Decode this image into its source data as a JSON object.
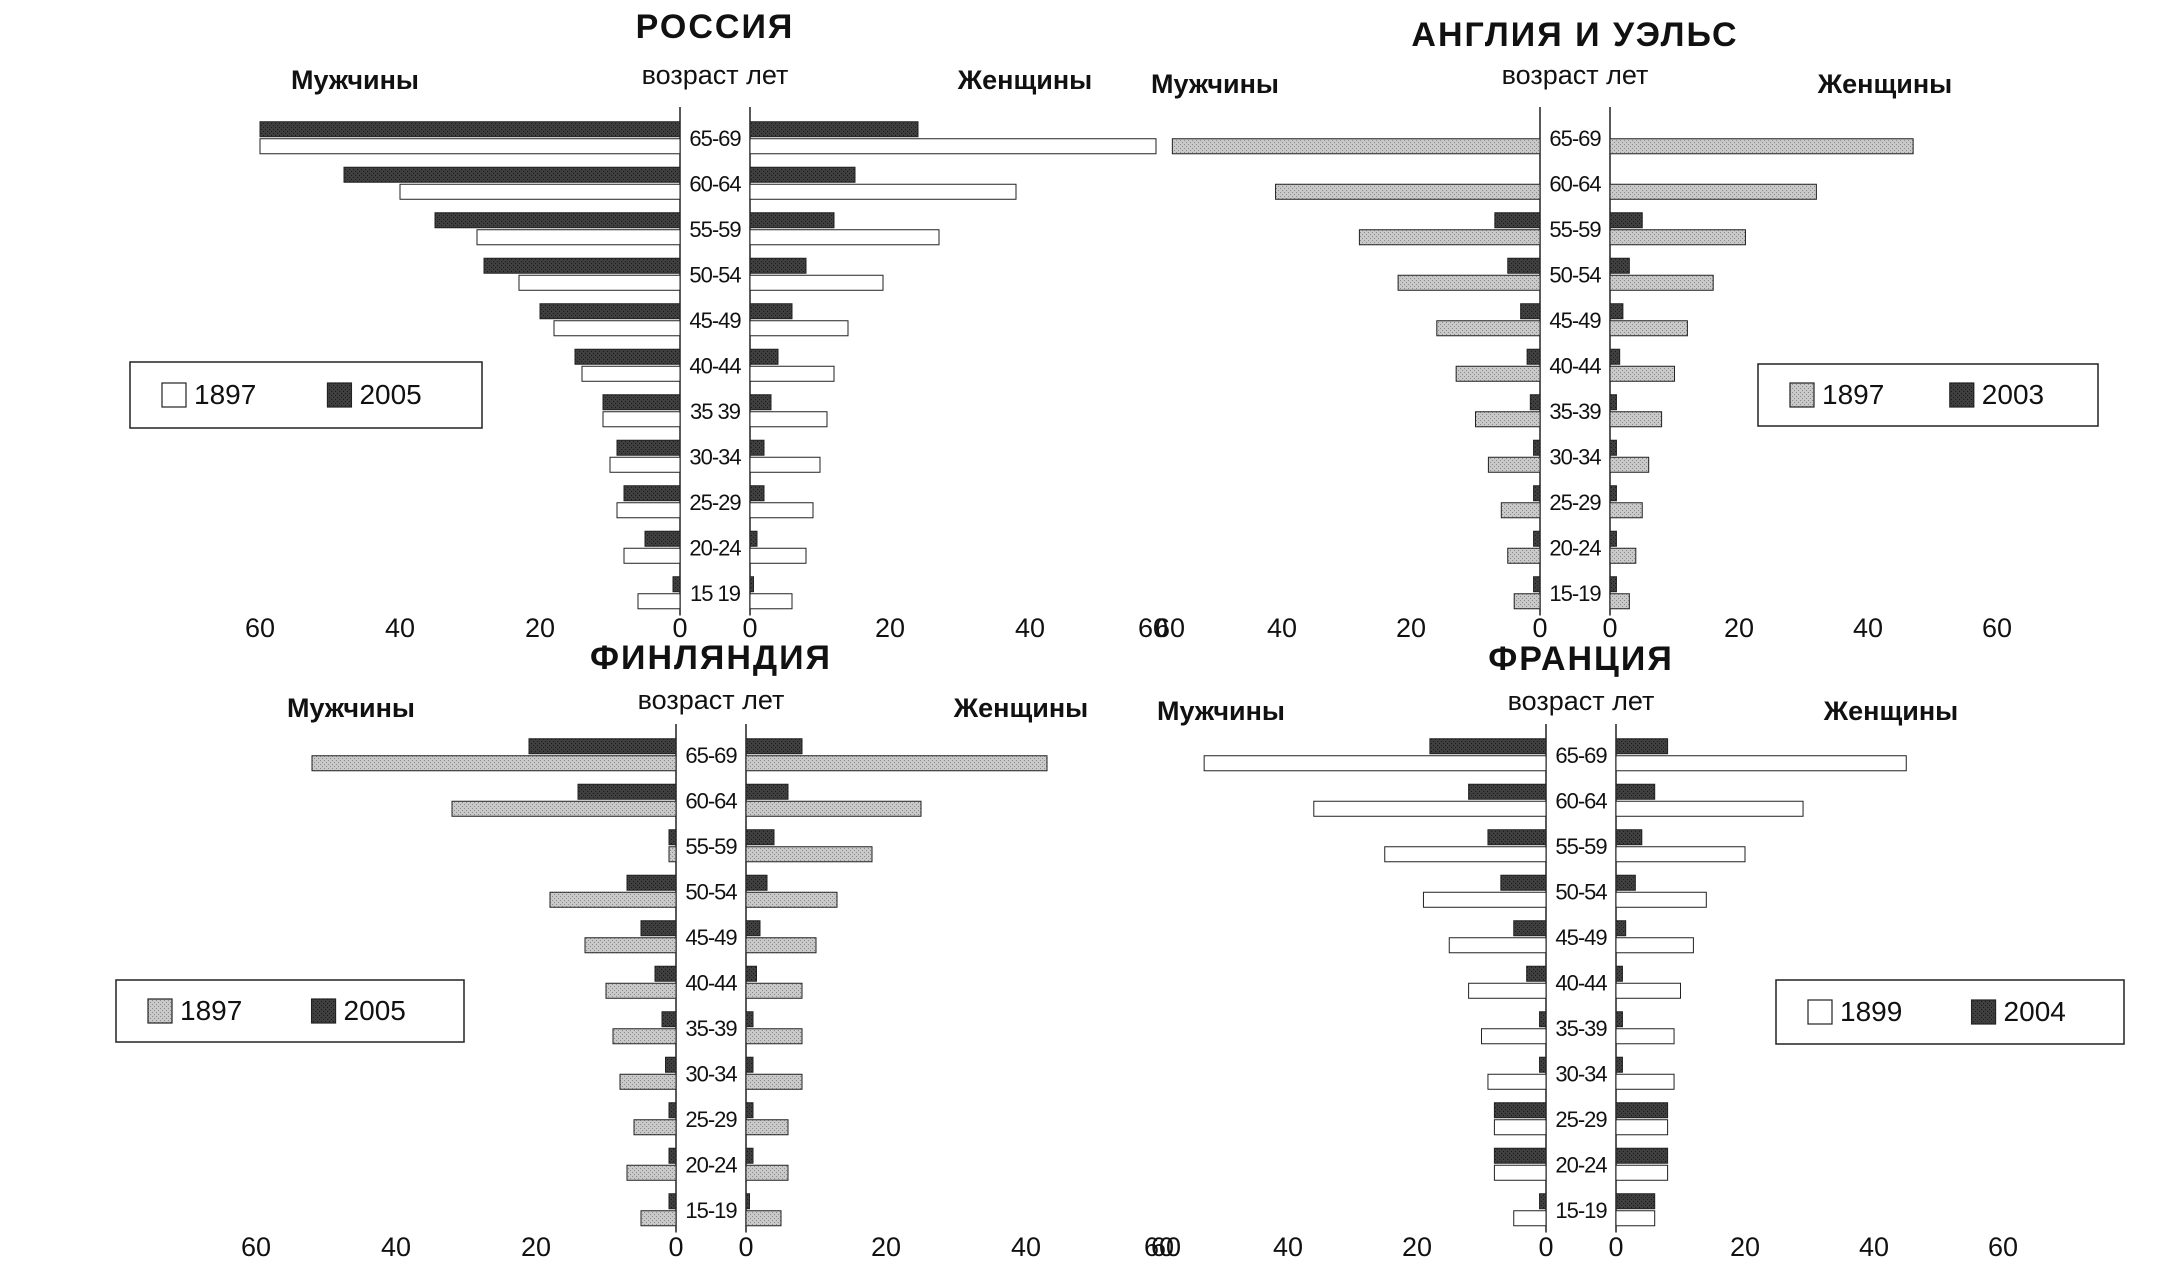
{
  "colors": {
    "old": "#c9c9c9",
    "new": "#3f3f3f",
    "blank": "#ffffff",
    "frame": "#222222"
  },
  "chart_data": [
    {
      "type": "bar",
      "title": "РОССИЯ",
      "men_label": "Мужчины",
      "women_label": "Женщины",
      "age_header": "возраст лет",
      "legend": [
        {
          "label": "1897",
          "swatch": "blank"
        },
        {
          "label": "2005",
          "swatch": "new"
        }
      ],
      "categories": [
        "65-69",
        "60-64",
        "55-59",
        "50-54",
        "45-49",
        "40-44",
        "35 39",
        "30-34",
        "25-29",
        "20-24",
        "15 19"
      ],
      "series": [
        {
          "name": "1897",
          "sex": "men",
          "values": [
            60,
            40,
            29,
            23,
            18,
            14,
            11,
            10,
            9,
            8,
            6
          ]
        },
        {
          "name": "2005",
          "sex": "men",
          "values": [
            60,
            48,
            35,
            28,
            20,
            15,
            11,
            9,
            8,
            5,
            1
          ]
        },
        {
          "name": "1897",
          "sex": "women",
          "values": [
            58,
            38,
            27,
            19,
            14,
            12,
            11,
            10,
            9,
            8,
            6
          ]
        },
        {
          "name": "2005",
          "sex": "women",
          "values": [
            24,
            15,
            12,
            8,
            6,
            4,
            3,
            2,
            2,
            1,
            0.5
          ]
        }
      ],
      "xticks_left": [
        "60",
        "40",
        "20",
        "0"
      ],
      "xticks_right": [
        "0",
        "20",
        "40",
        "60"
      ],
      "xlim": [
        0,
        60
      ]
    },
    {
      "type": "bar",
      "title": "АНГЛИЯ И УЭЛЬС",
      "men_label": "Мужчины",
      "women_label": "Женщины",
      "age_header": "возраст лет",
      "legend": [
        {
          "label": "1897",
          "swatch": "old"
        },
        {
          "label": "2003",
          "swatch": "new"
        }
      ],
      "categories": [
        "65-69",
        "60-64",
        "55-59",
        "50-54",
        "45-49",
        "40-44",
        "35-39",
        "30-34",
        "25-29",
        "20-24",
        "15-19"
      ],
      "series": [
        {
          "name": "1897",
          "sex": "men",
          "values": [
            57,
            41,
            28,
            22,
            16,
            13,
            10,
            8,
            6,
            5,
            4
          ]
        },
        {
          "name": "2003",
          "sex": "men",
          "values": [
            0,
            0,
            7,
            5,
            3,
            2,
            1.5,
            1,
            1,
            1,
            1
          ]
        },
        {
          "name": "1897",
          "sex": "women",
          "values": [
            47,
            32,
            21,
            16,
            12,
            10,
            8,
            6,
            5,
            4,
            3
          ]
        },
        {
          "name": "2003",
          "sex": "women",
          "values": [
            0,
            0,
            5,
            3,
            2,
            1.5,
            1,
            1,
            1,
            1,
            1
          ]
        }
      ],
      "xticks_left": [
        "60",
        "40",
        "20",
        "0"
      ],
      "xticks_right": [
        "0",
        "20",
        "40",
        "60"
      ],
      "xlim": [
        0,
        60
      ]
    },
    {
      "type": "bar",
      "title": "ФИНЛЯНДИЯ",
      "men_label": "Мужчины",
      "women_label": "Женщины",
      "age_header": "возраст лет",
      "legend": [
        {
          "label": "1897",
          "swatch": "old"
        },
        {
          "label": "2005",
          "swatch": "new"
        }
      ],
      "categories": [
        "65-69",
        "60-64",
        "55-59",
        "50-54",
        "45-49",
        "40-44",
        "35-39",
        "30-34",
        "25-29",
        "20-24",
        "15-19"
      ],
      "series": [
        {
          "name": "1897",
          "sex": "men",
          "values": [
            52,
            32,
            1,
            18,
            13,
            10,
            9,
            8,
            6,
            7,
            5
          ]
        },
        {
          "name": "2005",
          "sex": "men",
          "values": [
            21,
            14,
            1,
            7,
            5,
            3,
            2,
            1.5,
            1,
            1,
            1
          ]
        },
        {
          "name": "1897",
          "sex": "women",
          "values": [
            43,
            25,
            18,
            13,
            10,
            8,
            8,
            8,
            6,
            6,
            5
          ]
        },
        {
          "name": "2005",
          "sex": "women",
          "values": [
            8,
            6,
            4,
            3,
            2,
            1.5,
            1,
            1,
            1,
            1,
            0.5
          ]
        }
      ],
      "xticks_left": [
        "60",
        "40",
        "20",
        "0"
      ],
      "xticks_right": [
        "0",
        "20",
        "40",
        "60"
      ],
      "xlim": [
        0,
        60
      ]
    },
    {
      "type": "bar",
      "title": "ФРАНЦИЯ",
      "men_label": "Мужчины",
      "women_label": "Женщины",
      "age_header": "возраст лет",
      "legend": [
        {
          "label": "1899",
          "swatch": "blank"
        },
        {
          "label": "2004",
          "swatch": "new"
        }
      ],
      "categories": [
        "65-69",
        "60-64",
        "55-59",
        "50-54",
        "45-49",
        "40-44",
        "35-39",
        "30-34",
        "25-29",
        "20-24",
        "15-19"
      ],
      "series": [
        {
          "name": "1899",
          "sex": "men",
          "values": [
            53,
            36,
            25,
            19,
            15,
            12,
            10,
            9,
            8,
            8,
            5
          ]
        },
        {
          "name": "2004",
          "sex": "men",
          "values": [
            18,
            12,
            9,
            7,
            5,
            3,
            1,
            1,
            8,
            8,
            1
          ]
        },
        {
          "name": "1899",
          "sex": "women",
          "values": [
            45,
            29,
            20,
            14,
            12,
            10,
            9,
            9,
            8,
            8,
            6
          ]
        },
        {
          "name": "2004",
          "sex": "women",
          "values": [
            8,
            6,
            4,
            3,
            1.5,
            1,
            1,
            1,
            8,
            8,
            6
          ]
        }
      ],
      "xticks_left": [
        "60",
        "40",
        "20",
        "0"
      ],
      "xticks_right": [
        "0",
        "20",
        "40",
        "60"
      ],
      "xlim": [
        0,
        60
      ]
    }
  ]
}
